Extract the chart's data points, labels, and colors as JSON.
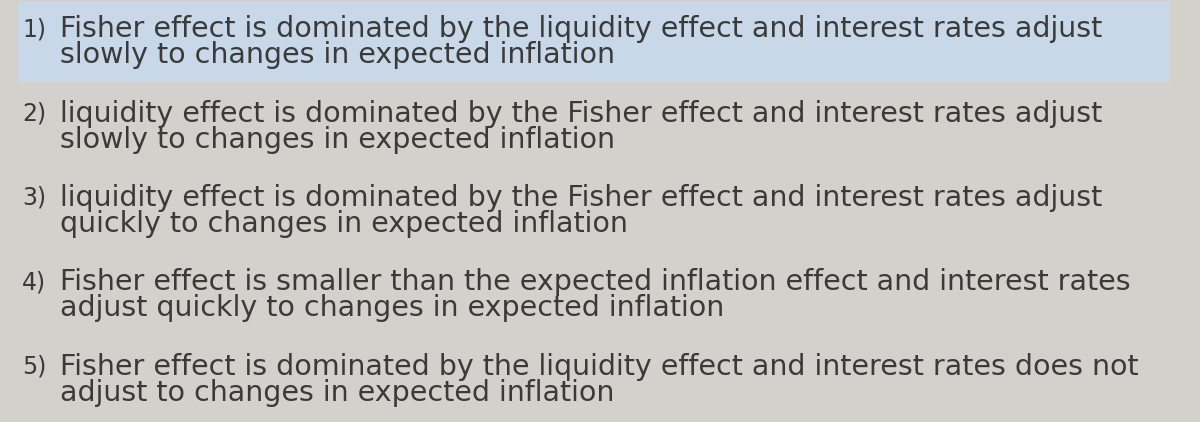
{
  "background_color": "#d4d0cc",
  "highlight_color": "#c8d8e8",
  "text_color": "#3a3a3a",
  "items": [
    {
      "number": "1)",
      "line1": "Fisher effect is dominated by the liquidity effect and interest rates adjust",
      "line2": "slowly to changes in expected inflation",
      "highlighted": true
    },
    {
      "number": "2)",
      "line1": "liquidity effect is dominated by the Fisher effect and interest rates adjust",
      "line2": "slowly to changes in expected inflation",
      "highlighted": false
    },
    {
      "number": "3)",
      "line1": "liquidity effect is dominated by the Fisher effect and interest rates adjust",
      "line2": "quickly to changes in expected inflation",
      "highlighted": false
    },
    {
      "number": "4)",
      "line1": "Fisher effect is smaller than the expected inflation effect and interest rates",
      "line2": "adjust quickly to changes in expected inflation",
      "highlighted": false
    },
    {
      "number": "5)",
      "line1": "Fisher effect is dominated by the liquidity effect and interest rates does not",
      "line2": "adjust to changes in expected inflation",
      "highlighted": false
    }
  ],
  "font_size": 20.5,
  "number_font_size": 17.0,
  "fig_width": 12.0,
  "fig_height": 4.22,
  "dpi": 100
}
